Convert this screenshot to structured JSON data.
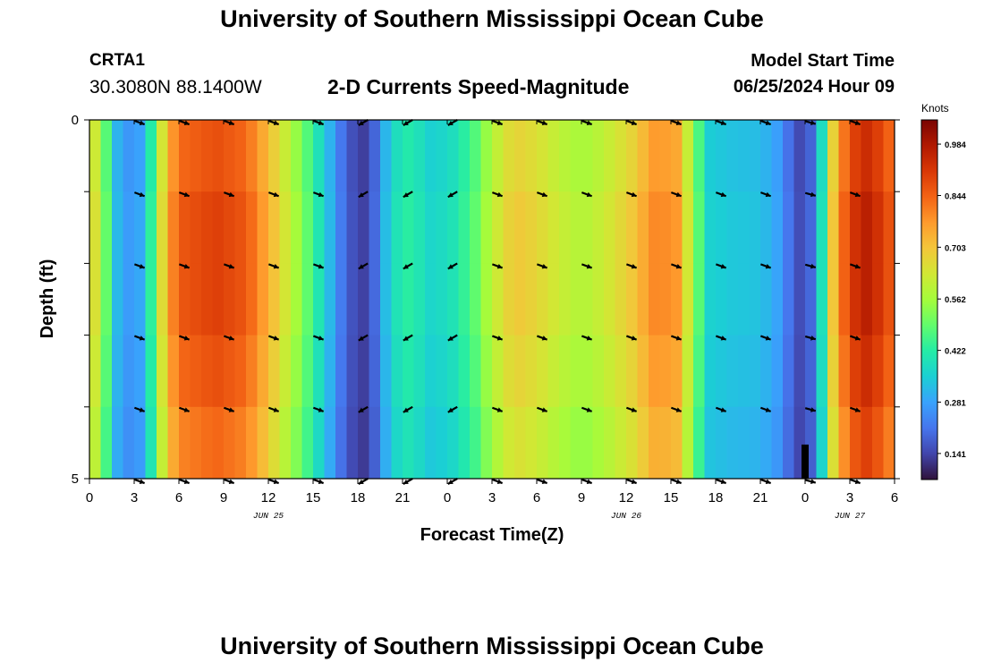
{
  "header": {
    "title": "University of Southern Mississippi Ocean Cube",
    "station": "CRTA1",
    "coordinates": "30.3080N  88.1400W",
    "subtitle": "2-D Currents Speed-Magnitude",
    "model_start_label": "Model Start Time",
    "model_start_value": "06/25/2024 Hour 09"
  },
  "footer": {
    "title": "University of Southern Mississippi Ocean Cube"
  },
  "chart_data": {
    "type": "heatmap",
    "title": "2-D Currents Speed-Magnitude",
    "xlabel": "Forecast Time(Z)",
    "ylabel": "Depth (ft)",
    "x_hours_since_jun25_00z": {
      "start": 0,
      "end": 54,
      "step": 0.75
    },
    "x_ticks": [
      {
        "hour": 0,
        "label": "0"
      },
      {
        "hour": 3,
        "label": "3"
      },
      {
        "hour": 6,
        "label": "6"
      },
      {
        "hour": 9,
        "label": "9"
      },
      {
        "hour": 12,
        "label": "12"
      },
      {
        "hour": 15,
        "label": "15"
      },
      {
        "hour": 18,
        "label": "18"
      },
      {
        "hour": 21,
        "label": "21"
      },
      {
        "hour": 24,
        "label": "0"
      },
      {
        "hour": 27,
        "label": "3"
      },
      {
        "hour": 30,
        "label": "6"
      },
      {
        "hour": 33,
        "label": "9"
      },
      {
        "hour": 36,
        "label": "12"
      },
      {
        "hour": 39,
        "label": "15"
      },
      {
        "hour": 42,
        "label": "18"
      },
      {
        "hour": 45,
        "label": "21"
      },
      {
        "hour": 48,
        "label": "0"
      },
      {
        "hour": 51,
        "label": "3"
      },
      {
        "hour": 54,
        "label": "6"
      }
    ],
    "date_labels": [
      {
        "hour": 12,
        "label": "JUN 25"
      },
      {
        "hour": 36,
        "label": "JUN 26"
      },
      {
        "hour": 51,
        "label": "JUN 27"
      }
    ],
    "y_range_ft": [
      0,
      5
    ],
    "y_ticks": [
      {
        "depth": 0,
        "label": "0"
      },
      {
        "depth": 1,
        "label": ""
      },
      {
        "depth": 2,
        "label": ""
      },
      {
        "depth": 3,
        "label": ""
      },
      {
        "depth": 4,
        "label": ""
      },
      {
        "depth": 5,
        "label": "5"
      }
    ],
    "speed_profile_knots": [
      {
        "hour": 0,
        "value": 0.75
      },
      {
        "hour": 0.6,
        "value": 0.58
      },
      {
        "hour": 1.2,
        "value": 0.48
      },
      {
        "hour": 1.8,
        "value": 0.32
      },
      {
        "hour": 2.8,
        "value": 0.26
      },
      {
        "hour": 3.6,
        "value": 0.3
      },
      {
        "hour": 4.2,
        "value": 0.45
      },
      {
        "hour": 4.7,
        "value": 0.6
      },
      {
        "hour": 5.2,
        "value": 0.76
      },
      {
        "hour": 6.2,
        "value": 0.86
      },
      {
        "hour": 8.5,
        "value": 0.9
      },
      {
        "hour": 10.5,
        "value": 0.86
      },
      {
        "hour": 12,
        "value": 0.74
      },
      {
        "hour": 13.5,
        "value": 0.6
      },
      {
        "hour": 14.8,
        "value": 0.47
      },
      {
        "hour": 16,
        "value": 0.33
      },
      {
        "hour": 17.2,
        "value": 0.18
      },
      {
        "hour": 18.3,
        "value": 0.13
      },
      {
        "hour": 19.2,
        "value": 0.2
      },
      {
        "hour": 20.2,
        "value": 0.38
      },
      {
        "hour": 21.5,
        "value": 0.43
      },
      {
        "hour": 23,
        "value": 0.36
      },
      {
        "hour": 24.5,
        "value": 0.4
      },
      {
        "hour": 25.8,
        "value": 0.48
      },
      {
        "hour": 27,
        "value": 0.6
      },
      {
        "hour": 28.5,
        "value": 0.7
      },
      {
        "hour": 30,
        "value": 0.67
      },
      {
        "hour": 31.5,
        "value": 0.62
      },
      {
        "hour": 33,
        "value": 0.58
      },
      {
        "hour": 34.5,
        "value": 0.62
      },
      {
        "hour": 36.5,
        "value": 0.7
      },
      {
        "hour": 38,
        "value": 0.8
      },
      {
        "hour": 39.5,
        "value": 0.77
      },
      {
        "hour": 40.5,
        "value": 0.55
      },
      {
        "hour": 41.5,
        "value": 0.36
      },
      {
        "hour": 43,
        "value": 0.34
      },
      {
        "hour": 45,
        "value": 0.33
      },
      {
        "hour": 46.2,
        "value": 0.28
      },
      {
        "hour": 47.2,
        "value": 0.18
      },
      {
        "hour": 48,
        "value": 0.13
      },
      {
        "hour": 48.8,
        "value": 0.26
      },
      {
        "hour": 49.4,
        "value": 0.5
      },
      {
        "hour": 50,
        "value": 0.75
      },
      {
        "hour": 51,
        "value": 0.9
      },
      {
        "hour": 52,
        "value": 0.97
      },
      {
        "hour": 53,
        "value": 0.92
      },
      {
        "hour": 54,
        "value": 0.84
      }
    ],
    "layer_adjust": [
      0.97,
      1.0,
      1.0,
      0.97,
      0.93
    ],
    "masked_cell": {
      "hour": 48,
      "depth_from": 4.5,
      "depth_to": 5
    },
    "vectors": {
      "hours": [
        3,
        6,
        9,
        12,
        15,
        18,
        21,
        24,
        27,
        30,
        33,
        36,
        39,
        42,
        45,
        48,
        51
      ],
      "depths": [
        0,
        1,
        2,
        3,
        4,
        5
      ],
      "direction_deg": [
        20,
        20,
        20,
        20,
        20,
        150,
        150,
        150,
        20,
        20,
        20,
        20,
        20,
        20,
        20,
        15,
        20
      ]
    },
    "colorbar": {
      "label": "Knots",
      "range": [
        0.07,
        1.05
      ],
      "ticks": [
        "0.984",
        "0.844",
        "0.703",
        "0.562",
        "0.422",
        "0.281",
        "0.141"
      ],
      "tick_values": [
        0.984,
        0.844,
        0.703,
        0.562,
        0.422,
        0.281,
        0.141
      ],
      "colormap": [
        "#30123b",
        "#4145ab",
        "#4675ed",
        "#39a2fc",
        "#1bcfd4",
        "#24eca6",
        "#61fc6c",
        "#a4fc3b",
        "#d1e834",
        "#f3c63a",
        "#fe9b2d",
        "#f36315",
        "#d93806",
        "#b11901",
        "#7a0402"
      ]
    }
  }
}
